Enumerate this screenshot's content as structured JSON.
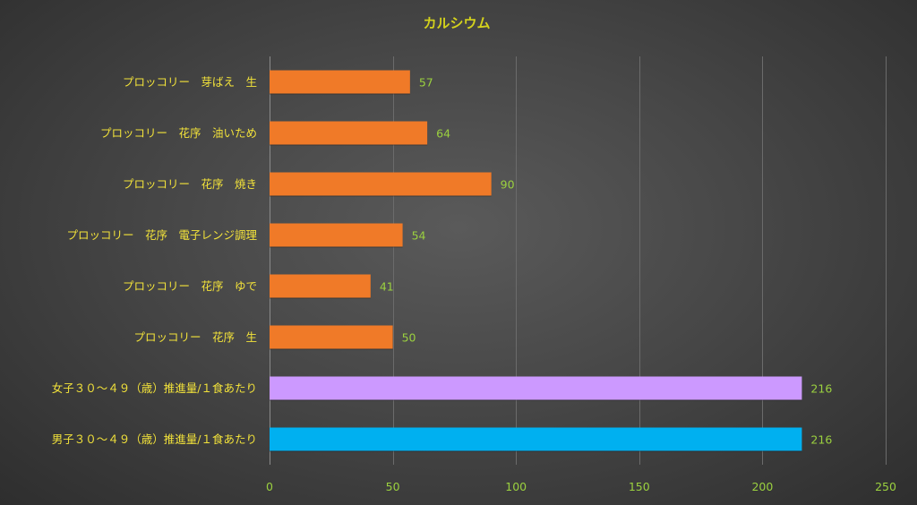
{
  "chart_data": {
    "type": "bar",
    "orientation": "horizontal",
    "title": "カルシウム",
    "categories": [
      "プロッコリー　芽ばえ　生",
      "プロッコリー　花序　油いため",
      "プロッコリー　花序　焼き",
      "プロッコリー　花序　電子レンジ調理",
      "プロッコリー　花序　ゆで",
      "プロッコリー　花序　生",
      "女子３０〜４９（歳）推進量/１食あたり",
      "男子３０〜４９（歳）推進量/１食あたり"
    ],
    "values": [
      57,
      64,
      90,
      54,
      41,
      50,
      216,
      216
    ],
    "bar_colors": [
      "#f07a28",
      "#f07a28",
      "#f07a28",
      "#f07a28",
      "#f07a28",
      "#f07a28",
      "#cc99ff",
      "#00b0f0"
    ],
    "xlim": [
      0,
      250
    ],
    "xticks": [
      0,
      50,
      100,
      150,
      200,
      250
    ],
    "grid": true,
    "legend": "none",
    "xlabel": "",
    "ylabel": ""
  },
  "colors": {
    "title": "#d4d21c",
    "category_text": "#f2e23a",
    "value_text": "#9bd13f",
    "tick_text": "#9bd13f",
    "gridline": "#6b6b6b"
  }
}
